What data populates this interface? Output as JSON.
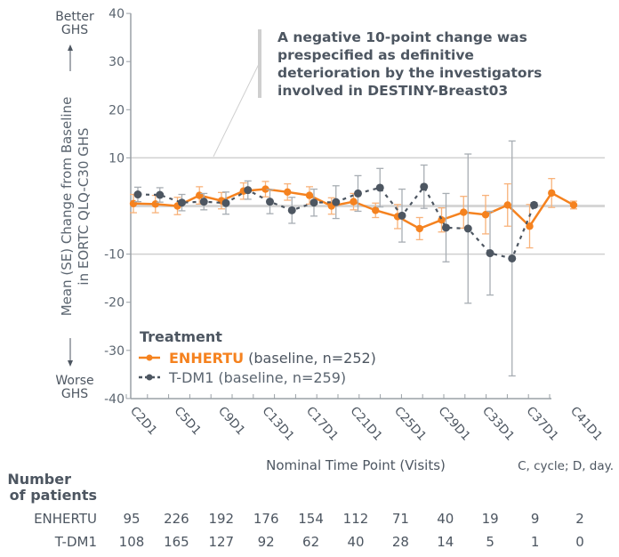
{
  "chart_data": {
    "type": "line",
    "ylabel": "Mean (SE) Change from Baseline in EORTC QLQ-C30 GHS",
    "ylabel_lines": [
      "Mean (SE) Change from Baseline",
      "in EORTC QLQ-C30 GHS"
    ],
    "xlabel": "Nominal Time Point (Visits)",
    "footnote": "C, cycle; D, day.",
    "ylim": [
      -40,
      40
    ],
    "yticks": [
      40,
      30,
      20,
      10,
      -10,
      -20,
      -30,
      -40
    ],
    "reference_lines": [
      10,
      0,
      -10
    ],
    "y_top_note": [
      "Better",
      "GHS"
    ],
    "y_bottom_note": [
      "Worse",
      "GHS"
    ],
    "x_tick_labels": [
      "C2D1",
      "C5D1",
      "C9D1",
      "C13D1",
      "C17D1",
      "C21D1",
      "C25D1",
      "C29D1",
      "C33D1",
      "C37D1",
      "C41D1"
    ],
    "annotation": [
      "A negative 10-point change was",
      "prespecified as definitive",
      "deterioration by the investigators",
      "involved in DESTINY-Breast03"
    ],
    "legend": {
      "title": "Treatment",
      "placement": "bottom-left"
    },
    "series": [
      {
        "name": "ENHERTU",
        "legend_suffix": "(baseline, n=252)",
        "color": "#f5821f",
        "style": "solid",
        "values": [
          0.5,
          0.4,
          0.0,
          2.2,
          1.1,
          3.1,
          3.5,
          2.9,
          2.2,
          0.0,
          0.9,
          -0.9,
          -2.2,
          -4.7,
          -2.9,
          -1.3,
          -1.8,
          0.2,
          -4.2,
          2.7,
          0.2
        ],
        "se": [
          1.9,
          1.8,
          1.8,
          1.8,
          1.7,
          1.7,
          1.6,
          1.7,
          1.8,
          1.7,
          1.7,
          1.5,
          2.5,
          2.3,
          2.5,
          3.3,
          4.0,
          4.4,
          4.5,
          3.0,
          0.8
        ]
      },
      {
        "name": "T-DM1",
        "legend_suffix": "(baseline, n=259)",
        "color": "#4d5661",
        "style": "dashed",
        "values": [
          2.4,
          2.3,
          0.7,
          0.9,
          0.6,
          3.3,
          0.9,
          -0.9,
          0.7,
          0.8,
          2.6,
          3.8,
          -2.0,
          4.0,
          -4.5,
          -4.7,
          -9.8,
          -10.9,
          0.2
        ],
        "se": [
          1.5,
          1.5,
          1.7,
          1.7,
          2.3,
          1.9,
          2.5,
          2.7,
          2.8,
          3.4,
          3.7,
          4.0,
          5.5,
          4.5,
          7.1,
          15.5,
          8.7,
          24.4,
          0.5
        ]
      }
    ]
  },
  "patients_table": {
    "title_lines": [
      "Number",
      "of patients"
    ],
    "rows": [
      {
        "label": "ENHERTU",
        "values": [
          "95",
          "226",
          "192",
          "176",
          "154",
          "112",
          "71",
          "40",
          "19",
          "9",
          "2"
        ]
      },
      {
        "label": "T-DM1",
        "values": [
          "108",
          "165",
          "127",
          "92",
          "62",
          "40",
          "28",
          "14",
          "5",
          "1",
          "0"
        ]
      }
    ]
  }
}
